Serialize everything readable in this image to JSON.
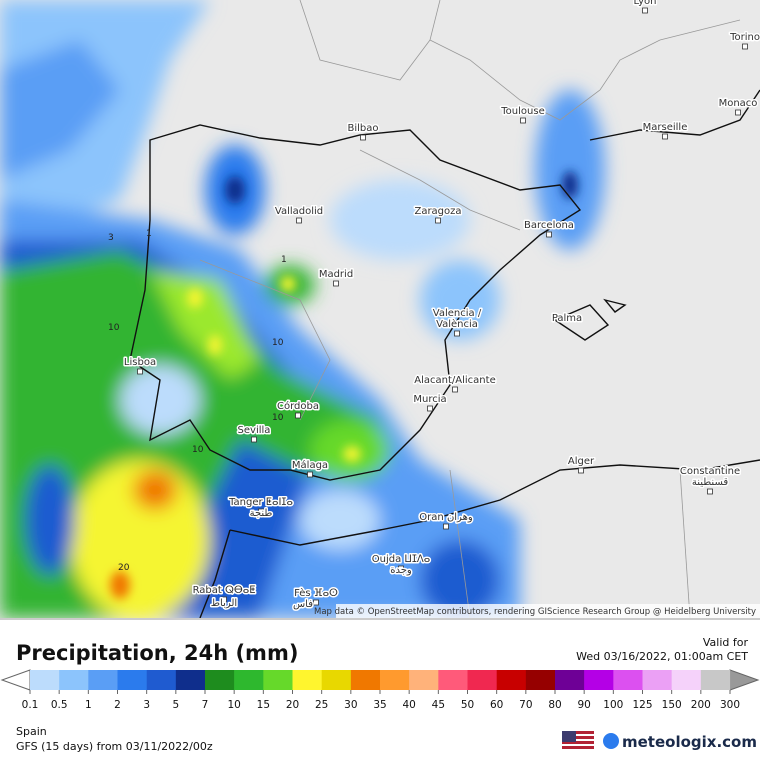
{
  "map": {
    "cities": [
      "Lyon",
      "Torino",
      "Monaco",
      "Toulouse",
      "Marseille",
      "Bilbao",
      "Valladolid",
      "Zaragoza",
      "Barcelona",
      "Madrid",
      "Valencia /",
      "València",
      "Palma",
      "Lisboa",
      "Alacant/Alicante",
      "Murcia",
      "Córdoba",
      "Sevilla",
      "Málaga",
      "Alger",
      "Constantine",
      "قسنطينة",
      "Tanger ⵟⴰⵏⵊⴰ",
      "طنجة",
      "Oran وهران",
      "Oujda ⵡⵊⴷⴰ",
      "وجدة",
      "Rabat ⵕⴱⴰⵟ",
      "الرباط",
      "Fès ⴼⴰⵙ",
      "فاس"
    ],
    "contours": [
      "3",
      "1",
      "1",
      "10",
      "10",
      "10",
      "10",
      "20"
    ],
    "attribution": "Map data © OpenStreetMap contributors, rendering GIScience Research Group @ Heidelberg University"
  },
  "legend": {
    "title": "Precipitation, 24h (mm)",
    "valid_label": "Valid for",
    "valid_time": "Wed 03/16/2022, 01:00am CET",
    "ticks": [
      0.1,
      0.5,
      1,
      2,
      3,
      5,
      7,
      10,
      15,
      20,
      25,
      30,
      35,
      40,
      45,
      50,
      60,
      70,
      80,
      90,
      100,
      125,
      150,
      200,
      300
    ],
    "colors": [
      "#bcdcfc",
      "#8cc4fc",
      "#5a9ef5",
      "#2b7bed",
      "#1f5bd0",
      "#0f2e8c",
      "#1e8c1e",
      "#2eb82e",
      "#66d92a",
      "#fff52e",
      "#e8d800",
      "#f07800",
      "#ff9a2e",
      "#ffb27a",
      "#ff5a7a",
      "#f02850",
      "#c80000",
      "#960000",
      "#6e0096",
      "#b400e6",
      "#dc50f0",
      "#eba0f5",
      "#f5d2fa",
      "#c8c8c8"
    ],
    "region": "Spain",
    "model_run": "GFS (15 days) from 03/11/2022/00z",
    "brand": "meteologix.com"
  }
}
